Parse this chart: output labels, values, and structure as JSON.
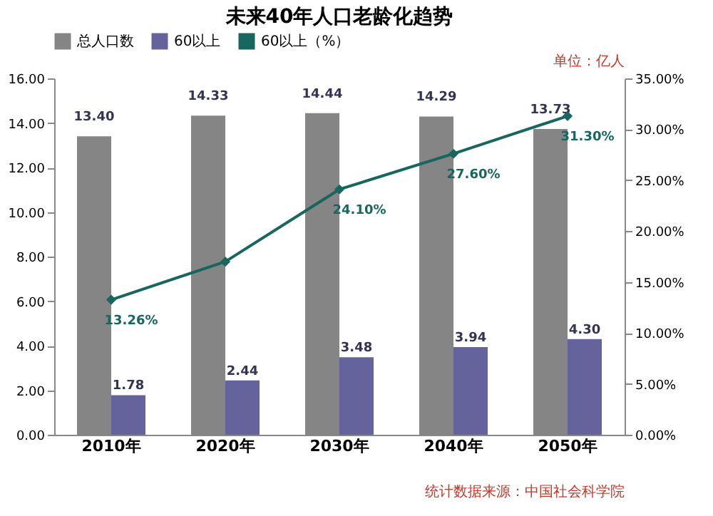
{
  "chart_data": {
    "type": "bar",
    "title": "未来40年人口老龄化趋势",
    "categories": [
      "2010年",
      "2020年",
      "2030年",
      "2040年",
      "2050年"
    ],
    "series": [
      {
        "name": "总人口数",
        "color": "#858585",
        "values": [
          13.4,
          14.33,
          14.44,
          14.29,
          13.73
        ],
        "value_labels": [
          "13.40",
          "14.33",
          "14.44",
          "14.29",
          "13.73"
        ]
      },
      {
        "name": "60以上",
        "color": "#65639b",
        "values": [
          1.78,
          2.44,
          3.48,
          3.94,
          4.3
        ],
        "value_labels": [
          "1.78",
          "2.44",
          "3.48",
          "3.94",
          "4.30"
        ]
      },
      {
        "name": "60以上（%）",
        "type": "line",
        "axis": "y2",
        "color": "#17665f",
        "marker": "diamond",
        "values": [
          13.26,
          17.0,
          24.1,
          27.6,
          31.3
        ],
        "value_labels": [
          "13.26%",
          null,
          "24.10%",
          "27.60%",
          "31.30%"
        ]
      }
    ],
    "ylim": [
      0,
      16
    ],
    "yticks": [
      {
        "value": 0,
        "label": "0.00"
      },
      {
        "value": 2,
        "label": "2.00"
      },
      {
        "value": 4,
        "label": "4.00"
      },
      {
        "value": 6,
        "label": "6.00"
      },
      {
        "value": 8,
        "label": "8.00"
      },
      {
        "value": 10,
        "label": "10.00"
      },
      {
        "value": 12,
        "label": "12.00"
      },
      {
        "value": 14,
        "label": "14.00"
      },
      {
        "value": 16,
        "label": "16.00"
      }
    ],
    "y2lim": [
      0,
      35
    ],
    "y2ticks": [
      {
        "value": 0,
        "label": "0.00%"
      },
      {
        "value": 5,
        "label": "5.00%"
      },
      {
        "value": 10,
        "label": "10.00%"
      },
      {
        "value": 15,
        "label": "15.00%"
      },
      {
        "value": 20,
        "label": "20.00%"
      },
      {
        "value": 25,
        "label": "25.00%"
      },
      {
        "value": 30,
        "label": "30.00%"
      },
      {
        "value": 35,
        "label": "35.00%"
      }
    ],
    "legend": "top",
    "grid": false,
    "annotations": [
      "单位：亿人",
      "统计数据来源：中国社会科学院"
    ]
  }
}
